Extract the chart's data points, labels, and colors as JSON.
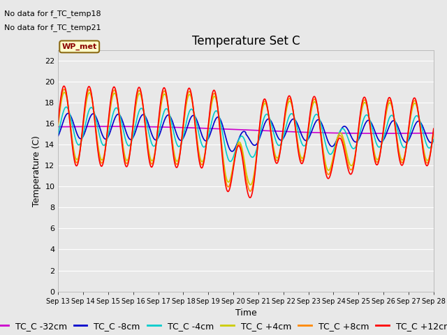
{
  "title": "Temperature Set C",
  "xlabel": "Time",
  "ylabel": "Temperature (C)",
  "annotation_lines": [
    "No data for f_TC_temp18",
    "No data for f_TC_temp21"
  ],
  "wp_met_label": "WP_met",
  "ylim": [
    0,
    23
  ],
  "yticks": [
    0,
    2,
    4,
    6,
    8,
    10,
    12,
    14,
    16,
    18,
    20,
    22
  ],
  "xtick_labels": [
    "Sep 13",
    "Sep 14",
    "Sep 15",
    "Sep 16",
    "Sep 17",
    "Sep 18",
    "Sep 19",
    "Sep 20",
    "Sep 21",
    "Sep 22",
    "Sep 23",
    "Sep 24",
    "Sep 25",
    "Sep 26",
    "Sep 27",
    "Sep 28"
  ],
  "series_colors": {
    "TC_C -32cm": "#cc00cc",
    "TC_C -8cm": "#0000cc",
    "TC_C -4cm": "#00cccc",
    "TC_C +4cm": "#cccc00",
    "TC_C +8cm": "#ff8800",
    "TC_C +12cm": "#ff0000"
  },
  "series_order": [
    "TC_C -32cm",
    "TC_C -8cm",
    "TC_C -4cm",
    "TC_C +4cm",
    "TC_C +8cm",
    "TC_C +12cm"
  ],
  "legend_colors": [
    "#cc00cc",
    "#0000cc",
    "#00cccc",
    "#cccc00",
    "#ff8800",
    "#ff0000"
  ],
  "legend_labels": [
    "TC_C -32cm",
    "TC_C -8cm",
    "TC_C -4cm",
    "TC_C +4cm",
    "TC_C +8cm",
    "TC_C +12cm"
  ],
  "bg_color": "#e8e8e8",
  "fig_bg_color": "#e8e8e8",
  "title_fontsize": 12,
  "axis_fontsize": 9,
  "tick_fontsize": 8,
  "legend_fontsize": 9,
  "line_width": 1.2
}
